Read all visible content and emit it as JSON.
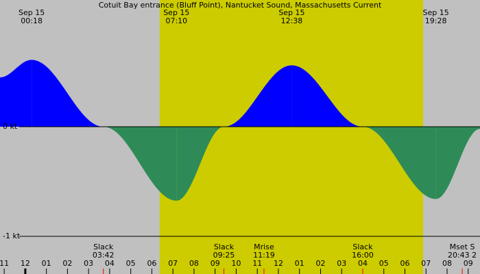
{
  "chart_data": {
    "type": "area",
    "title": "Cotuit Bay entrance (Bluff Point), Nantucket Sound, Massachusetts Current",
    "x": [
      -1.2,
      0.3,
      3.7,
      7.167,
      9.417,
      12.633,
      16,
      19.467,
      21.56
    ],
    "values": [
      0.45,
      0.61,
      0,
      -0.675,
      0,
      0.56,
      0,
      -0.66,
      -0.02
    ],
    "flood_color": "#0000ff",
    "ebb_color": "#2e8b57",
    "night_color": "#c0c0c0",
    "day_color": "#cccc00",
    "daylight": [
      6.37,
      18.86
    ],
    "xlim": [
      -1.2,
      21.56
    ],
    "ylim": [
      -1.344,
      1.156
    ],
    "yticks": [
      {
        "value": 0,
        "label": "0 kt"
      },
      {
        "value": -1,
        "label": "-1 kt"
      }
    ],
    "xticks": [
      {
        "value": -1,
        "label": "11"
      },
      {
        "value": 0,
        "label": "12"
      },
      {
        "value": 1,
        "label": "01"
      },
      {
        "value": 2,
        "label": "02"
      },
      {
        "value": 3,
        "label": "03"
      },
      {
        "value": 4,
        "label": "04"
      },
      {
        "value": 5,
        "label": "05"
      },
      {
        "value": 6,
        "label": "06"
      },
      {
        "value": 7,
        "label": "07"
      },
      {
        "value": 8,
        "label": "08"
      },
      {
        "value": 9,
        "label": "09"
      },
      {
        "value": 10,
        "label": "10"
      },
      {
        "value": 11,
        "label": "11"
      },
      {
        "value": 12,
        "label": "12"
      },
      {
        "value": 13,
        "label": "01"
      },
      {
        "value": 14,
        "label": "02"
      },
      {
        "value": 15,
        "label": "03"
      },
      {
        "value": 16,
        "label": "04"
      },
      {
        "value": 17,
        "label": "05"
      },
      {
        "value": 18,
        "label": "06"
      },
      {
        "value": 19,
        "label": "07"
      },
      {
        "value": 20,
        "label": "08"
      },
      {
        "value": 21,
        "label": "09"
      }
    ],
    "peak_labels": [
      {
        "date": "Sep 15",
        "time": "00:18",
        "x": 0.3
      },
      {
        "date": "Sep 15",
        "time": "07:10",
        "x": 7.167
      },
      {
        "date": "Sep 15",
        "time": "12:38",
        "x": 12.633
      },
      {
        "date": "Sep 15",
        "time": "19:28",
        "x": 19.467
      }
    ],
    "events": [
      {
        "name": "Slack",
        "time": "03:42",
        "x": 3.7
      },
      {
        "name": "Slack",
        "time": "09:25",
        "x": 9.417
      },
      {
        "name": "Mrise",
        "time": "11:19",
        "x": 11.317
      },
      {
        "name": "Slack",
        "time": "16:00",
        "x": 16
      },
      {
        "name": "Mset S",
        "time": "20:43 2",
        "x": 20.717
      }
    ]
  }
}
